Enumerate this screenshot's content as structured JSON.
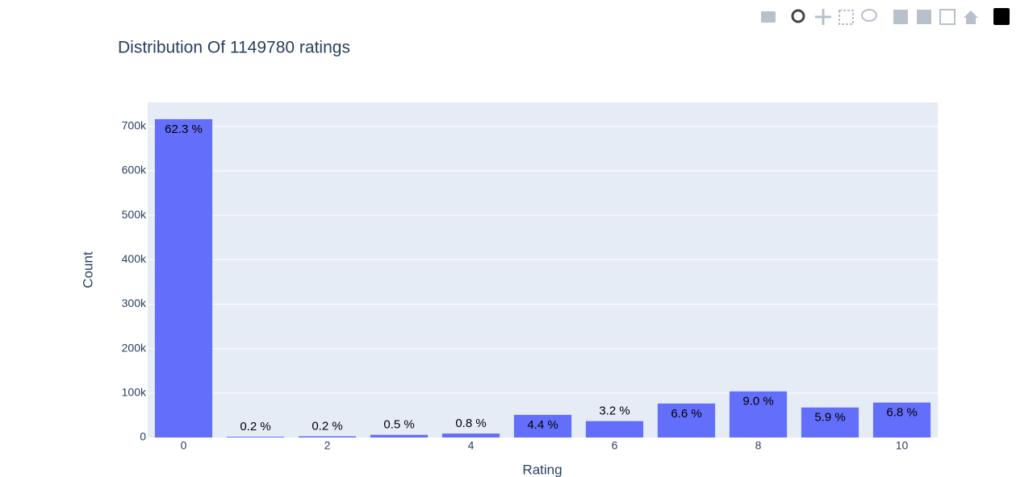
{
  "chart_data": {
    "type": "bar",
    "title": "Distribution Of 1149780 ratings",
    "x_label": "Rating",
    "y_label": "Count",
    "x": [
      0,
      1,
      2,
      3,
      4,
      5,
      6,
      7,
      8,
      9,
      10
    ],
    "values": [
      716109,
      1770,
      2759,
      5996,
      8904,
      50974,
      36924,
      76457,
      103736,
      67541,
      78610
    ],
    "percent_labels": [
      "62.3 %",
      "0.2 %",
      "0.2 %",
      "0.5 %",
      "0.8 %",
      "4.4 %",
      "3.2 %",
      "6.6 %",
      "9.0 %",
      "5.9 %",
      "6.8 %"
    ],
    "color": "#636efa",
    "xlim": [
      -0.5,
      10.5
    ],
    "xticks": [
      0,
      2,
      4,
      6,
      8,
      10
    ],
    "ylim": [
      0,
      754000
    ],
    "yticks": [
      0,
      {
        "value": 100000,
        "label": "100k"
      },
      {
        "value": 200000,
        "label": "200k"
      },
      {
        "value": 300000,
        "label": "300k"
      },
      {
        "value": 400000,
        "label": "400k"
      },
      {
        "value": 500000,
        "label": "500k"
      },
      {
        "value": 600000,
        "label": "600k"
      },
      {
        "value": 700000,
        "label": "700k"
      }
    ],
    "grid": true
  }
}
